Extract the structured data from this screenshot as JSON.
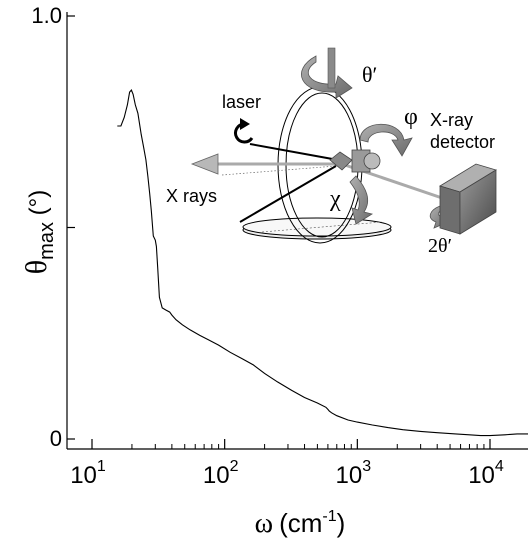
{
  "chart_data": {
    "type": "line",
    "x_scale": "log",
    "xlim": [
      6.5,
      20000
    ],
    "ylim": [
      0,
      1.0
    ],
    "xlabel": {
      "symbol": "ω",
      "unit": "(cm",
      "sup": "-1",
      "close": ")"
    },
    "ylabel": {
      "symbol": "θ",
      "sub": "max",
      "unit": " (°)"
    },
    "y_ticks": [
      {
        "value": 0,
        "label": "0"
      },
      {
        "value": 0.5,
        "label": ""
      },
      {
        "value": 1.0,
        "label": "1.0"
      }
    ],
    "x_ticks": [
      {
        "value": 10,
        "base": "10",
        "exp": "1"
      },
      {
        "value": 100,
        "base": "10",
        "exp": "2"
      },
      {
        "value": 1000,
        "base": "10",
        "exp": "3"
      },
      {
        "value": 10000,
        "base": "10",
        "exp": "4"
      }
    ],
    "grid": false,
    "series": [
      {
        "x": [
          15.5,
          16.5,
          17.5,
          18.5,
          19.2,
          19.8,
          20.4,
          21.2,
          22.2,
          23.5,
          24.5,
          25.5,
          26.4,
          27.2,
          28.0,
          29.0,
          30.0,
          30.6,
          31.3,
          32.2,
          33.8,
          36.0,
          38.5,
          40.0,
          43.0,
          48.0,
          55.0,
          65.0,
          75.0,
          90.0,
          110.0,
          135.0,
          165.0,
          200.0,
          250.0,
          320.0,
          400.0,
          500.0,
          580.0,
          600.0,
          615.0,
          640.0,
          700.0,
          850.0,
          1000.0,
          1300.0,
          1700.0,
          2200.0,
          3000.0,
          4000.0,
          5500.0,
          7000.0,
          8500.0,
          10000.0,
          13000.0,
          16000.0,
          20000.0
        ],
        "y": [
          0.74,
          0.74,
          0.76,
          0.79,
          0.82,
          0.825,
          0.815,
          0.79,
          0.77,
          0.72,
          0.69,
          0.66,
          0.62,
          0.58,
          0.54,
          0.48,
          0.47,
          0.455,
          0.405,
          0.335,
          0.31,
          0.305,
          0.3,
          0.293,
          0.282,
          0.27,
          0.258,
          0.245,
          0.235,
          0.222,
          0.205,
          0.19,
          0.175,
          0.155,
          0.135,
          0.115,
          0.098,
          0.085,
          0.075,
          0.07,
          0.066,
          0.062,
          0.055,
          0.045,
          0.04,
          0.033,
          0.027,
          0.022,
          0.018,
          0.015,
          0.012,
          0.01,
          0.008,
          0.008,
          0.01,
          0.012,
          0.012
        ]
      }
    ]
  },
  "inset": {
    "theta_prime": "θ′",
    "laser": "laser",
    "phi": "φ",
    "xray_detector_line1": "X-ray",
    "xray_detector_line2": "detector",
    "x_rays": "X rays",
    "chi": "χ",
    "two_theta_prime": "2θ′"
  }
}
